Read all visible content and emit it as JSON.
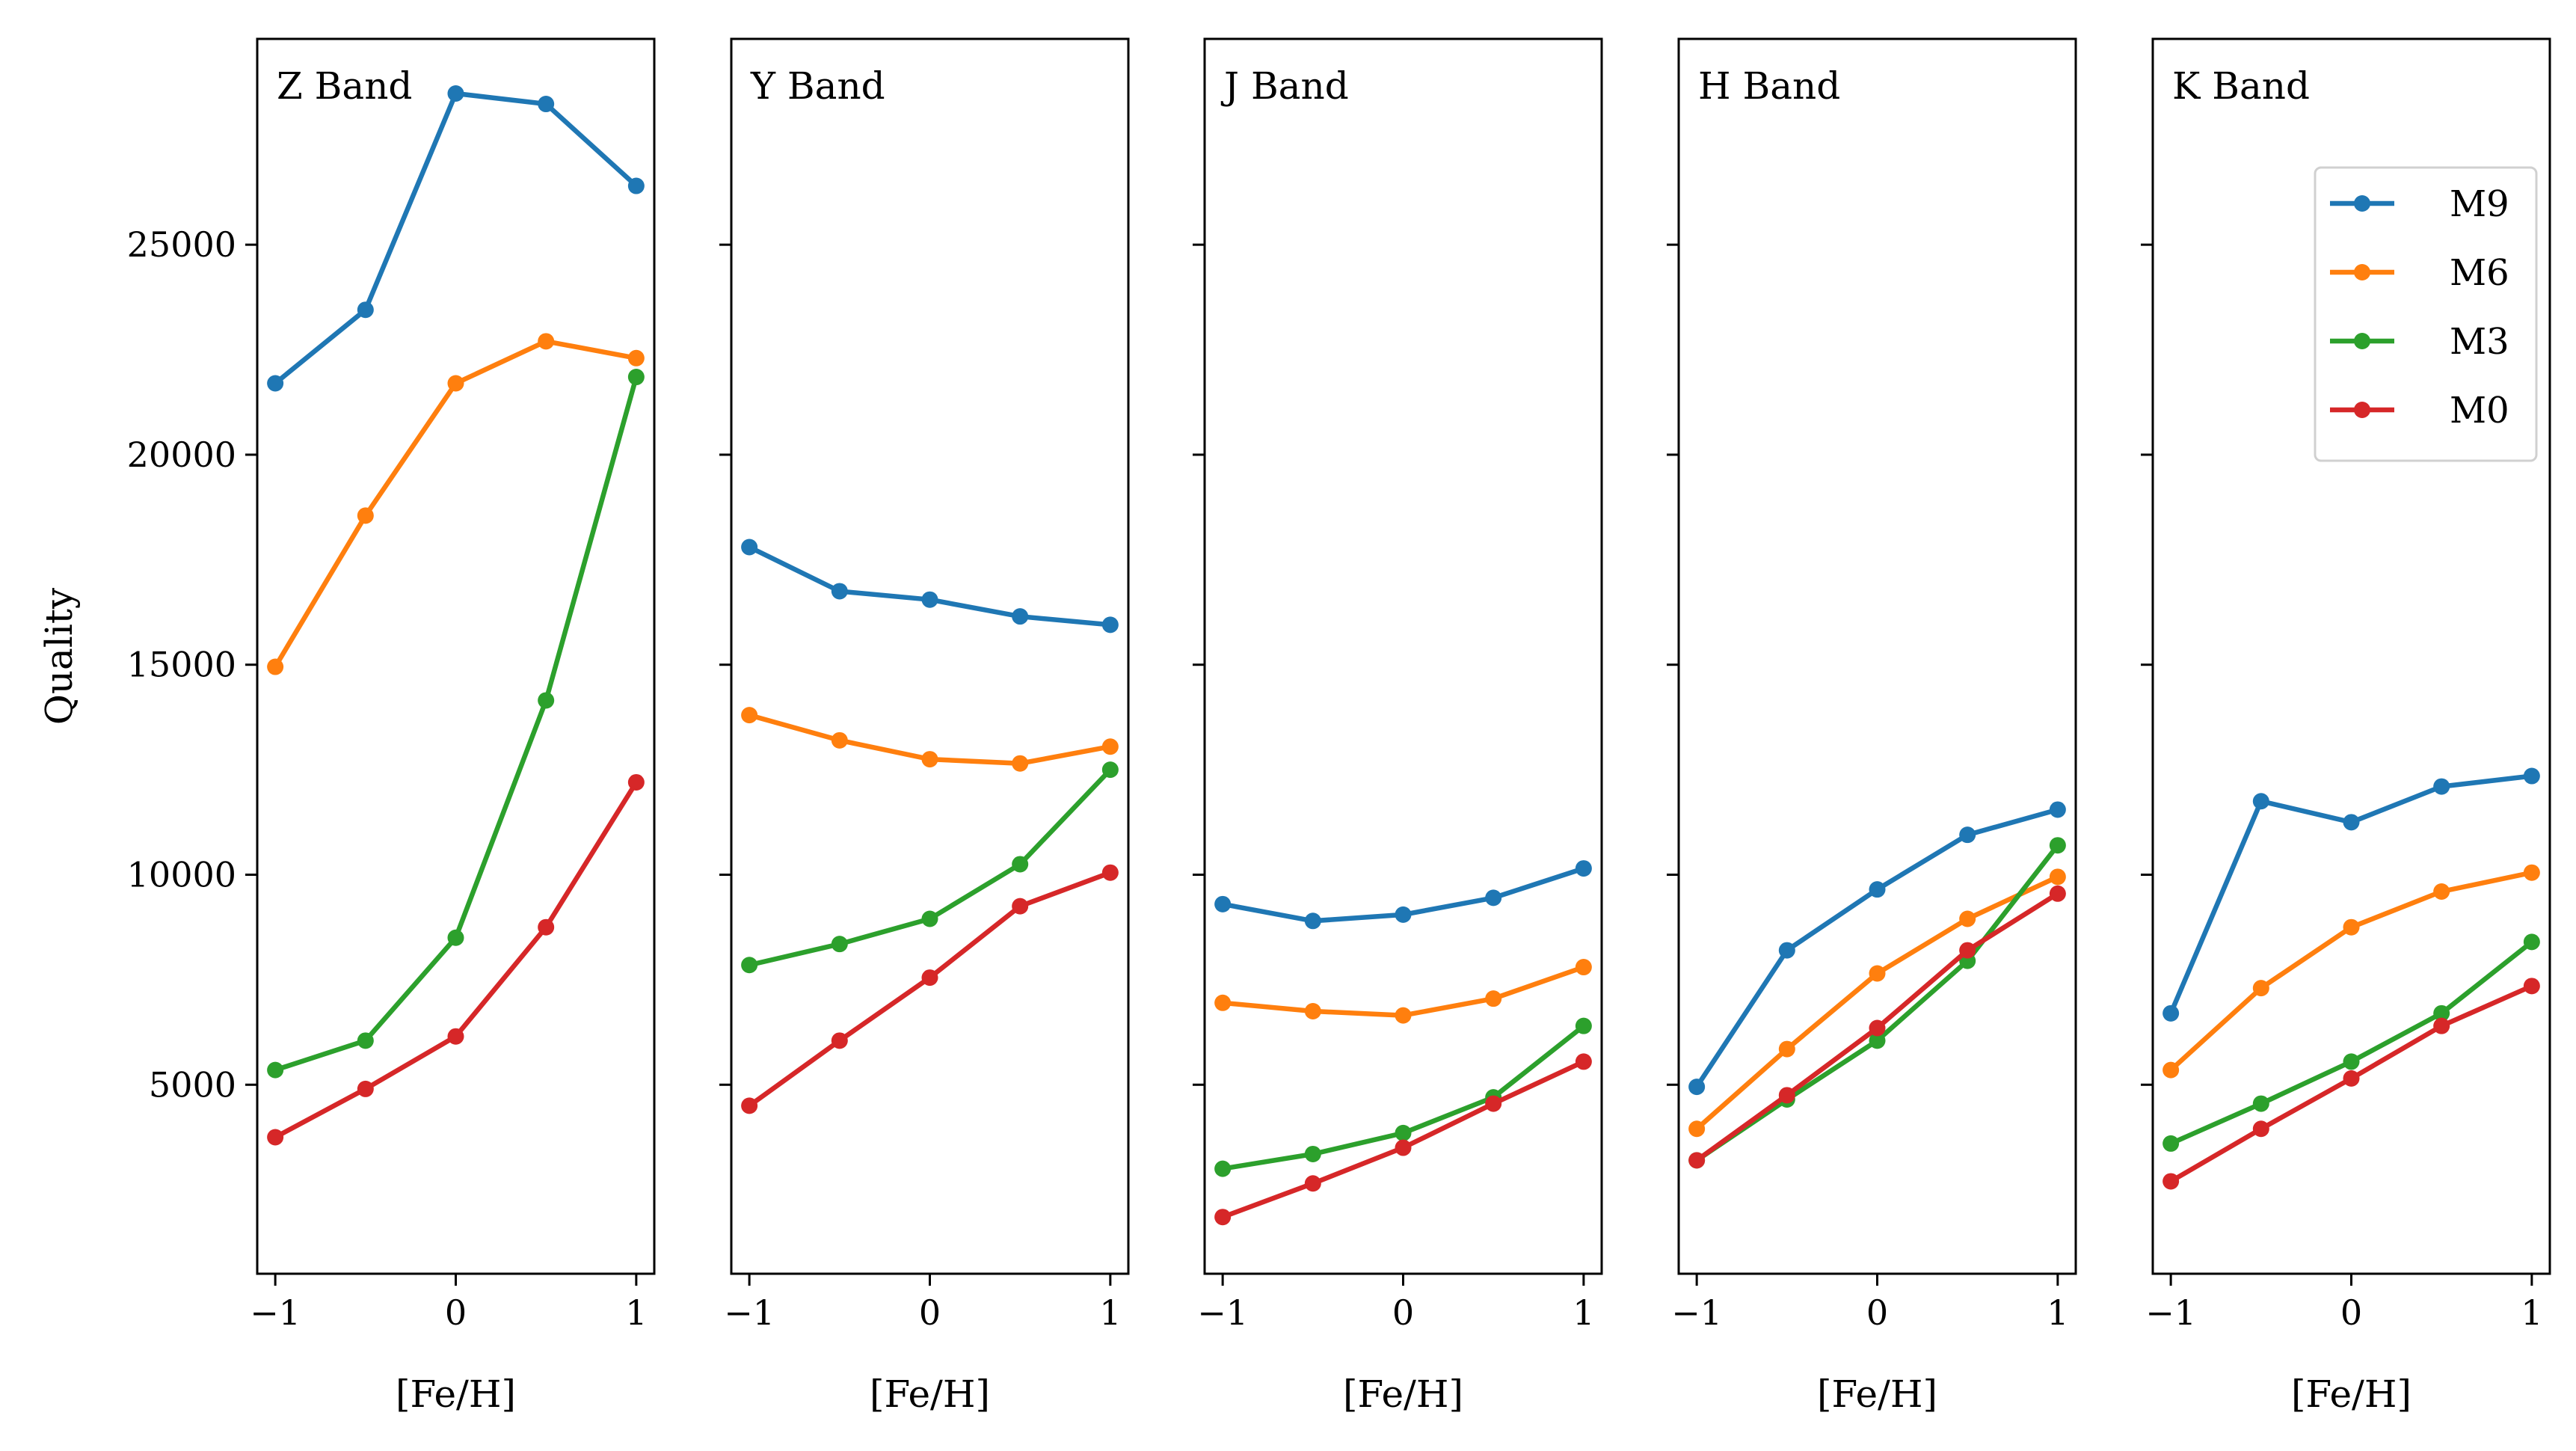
{
  "chart_data": {
    "type": "line",
    "ylabel": "Quality",
    "xlabel": "[Fe/H]",
    "x": [
      -1,
      -0.5,
      0,
      0.5,
      1
    ],
    "xticks": [
      -1,
      0,
      1
    ],
    "xtick_labels": [
      "−1",
      "0",
      "1"
    ],
    "xlim": [
      -1.1,
      1.1
    ],
    "yticks": [
      5000,
      10000,
      15000,
      20000,
      25000
    ],
    "ytick_labels": [
      "5000",
      "10000",
      "15000",
      "20000",
      "25000"
    ],
    "ylim": [
      500,
      29900
    ],
    "shared_y": true,
    "grid": false,
    "legend": {
      "placement": "upper-right",
      "panel": "K Band",
      "entries": [
        "M9",
        "M6",
        "M3",
        "M0"
      ]
    },
    "series_colors": {
      "M9": "#1f77b4",
      "M6": "#ff7f0e",
      "M3": "#2ca02c",
      "M0": "#d62728"
    },
    "panels": [
      {
        "title": "Z Band",
        "series": [
          {
            "name": "M9",
            "values": [
              21700,
              23450,
              28600,
              28350,
              26400
            ]
          },
          {
            "name": "M6",
            "values": [
              14950,
              18550,
              21700,
              22700,
              22300
            ]
          },
          {
            "name": "M3",
            "values": [
              5350,
              6050,
              8500,
              14150,
              21850
            ]
          },
          {
            "name": "M0",
            "values": [
              3750,
              4900,
              6150,
              8750,
              12200
            ]
          }
        ]
      },
      {
        "title": "Y Band",
        "series": [
          {
            "name": "M9",
            "values": [
              17800,
              16750,
              16550,
              16150,
              15950
            ]
          },
          {
            "name": "M6",
            "values": [
              13800,
              13200,
              12750,
              12650,
              13050
            ]
          },
          {
            "name": "M3",
            "values": [
              7850,
              8350,
              8950,
              10250,
              12500
            ]
          },
          {
            "name": "M0",
            "values": [
              4500,
              6050,
              7550,
              9250,
              10050
            ]
          }
        ]
      },
      {
        "title": "J Band",
        "series": [
          {
            "name": "M9",
            "values": [
              9300,
              8900,
              9050,
              9450,
              10150
            ]
          },
          {
            "name": "M6",
            "values": [
              6950,
              6750,
              6650,
              7050,
              7800
            ]
          },
          {
            "name": "M3",
            "values": [
              3000,
              3350,
              3850,
              4700,
              6400
            ]
          },
          {
            "name": "M0",
            "values": [
              1850,
              2650,
              3500,
              4550,
              5550
            ]
          }
        ]
      },
      {
        "title": "H Band",
        "series": [
          {
            "name": "M9",
            "values": [
              4950,
              8200,
              9650,
              10950,
              11550
            ]
          },
          {
            "name": "M6",
            "values": [
              3950,
              5850,
              7650,
              8950,
              9950
            ]
          },
          {
            "name": "M3",
            "values": [
              3200,
              4650,
              6050,
              7950,
              10700
            ]
          },
          {
            "name": "M0",
            "values": [
              3200,
              4750,
              6350,
              8200,
              9550
            ]
          }
        ]
      },
      {
        "title": "K Band",
        "series": [
          {
            "name": "M9",
            "values": [
              6700,
              11750,
              11250,
              12100,
              12350
            ]
          },
          {
            "name": "M6",
            "values": [
              5350,
              7300,
              8750,
              9600,
              10050
            ]
          },
          {
            "name": "M3",
            "values": [
              3600,
              4550,
              5550,
              6700,
              8400
            ]
          },
          {
            "name": "M0",
            "values": [
              2700,
              3950,
              5150,
              6400,
              7350
            ]
          }
        ]
      }
    ]
  }
}
